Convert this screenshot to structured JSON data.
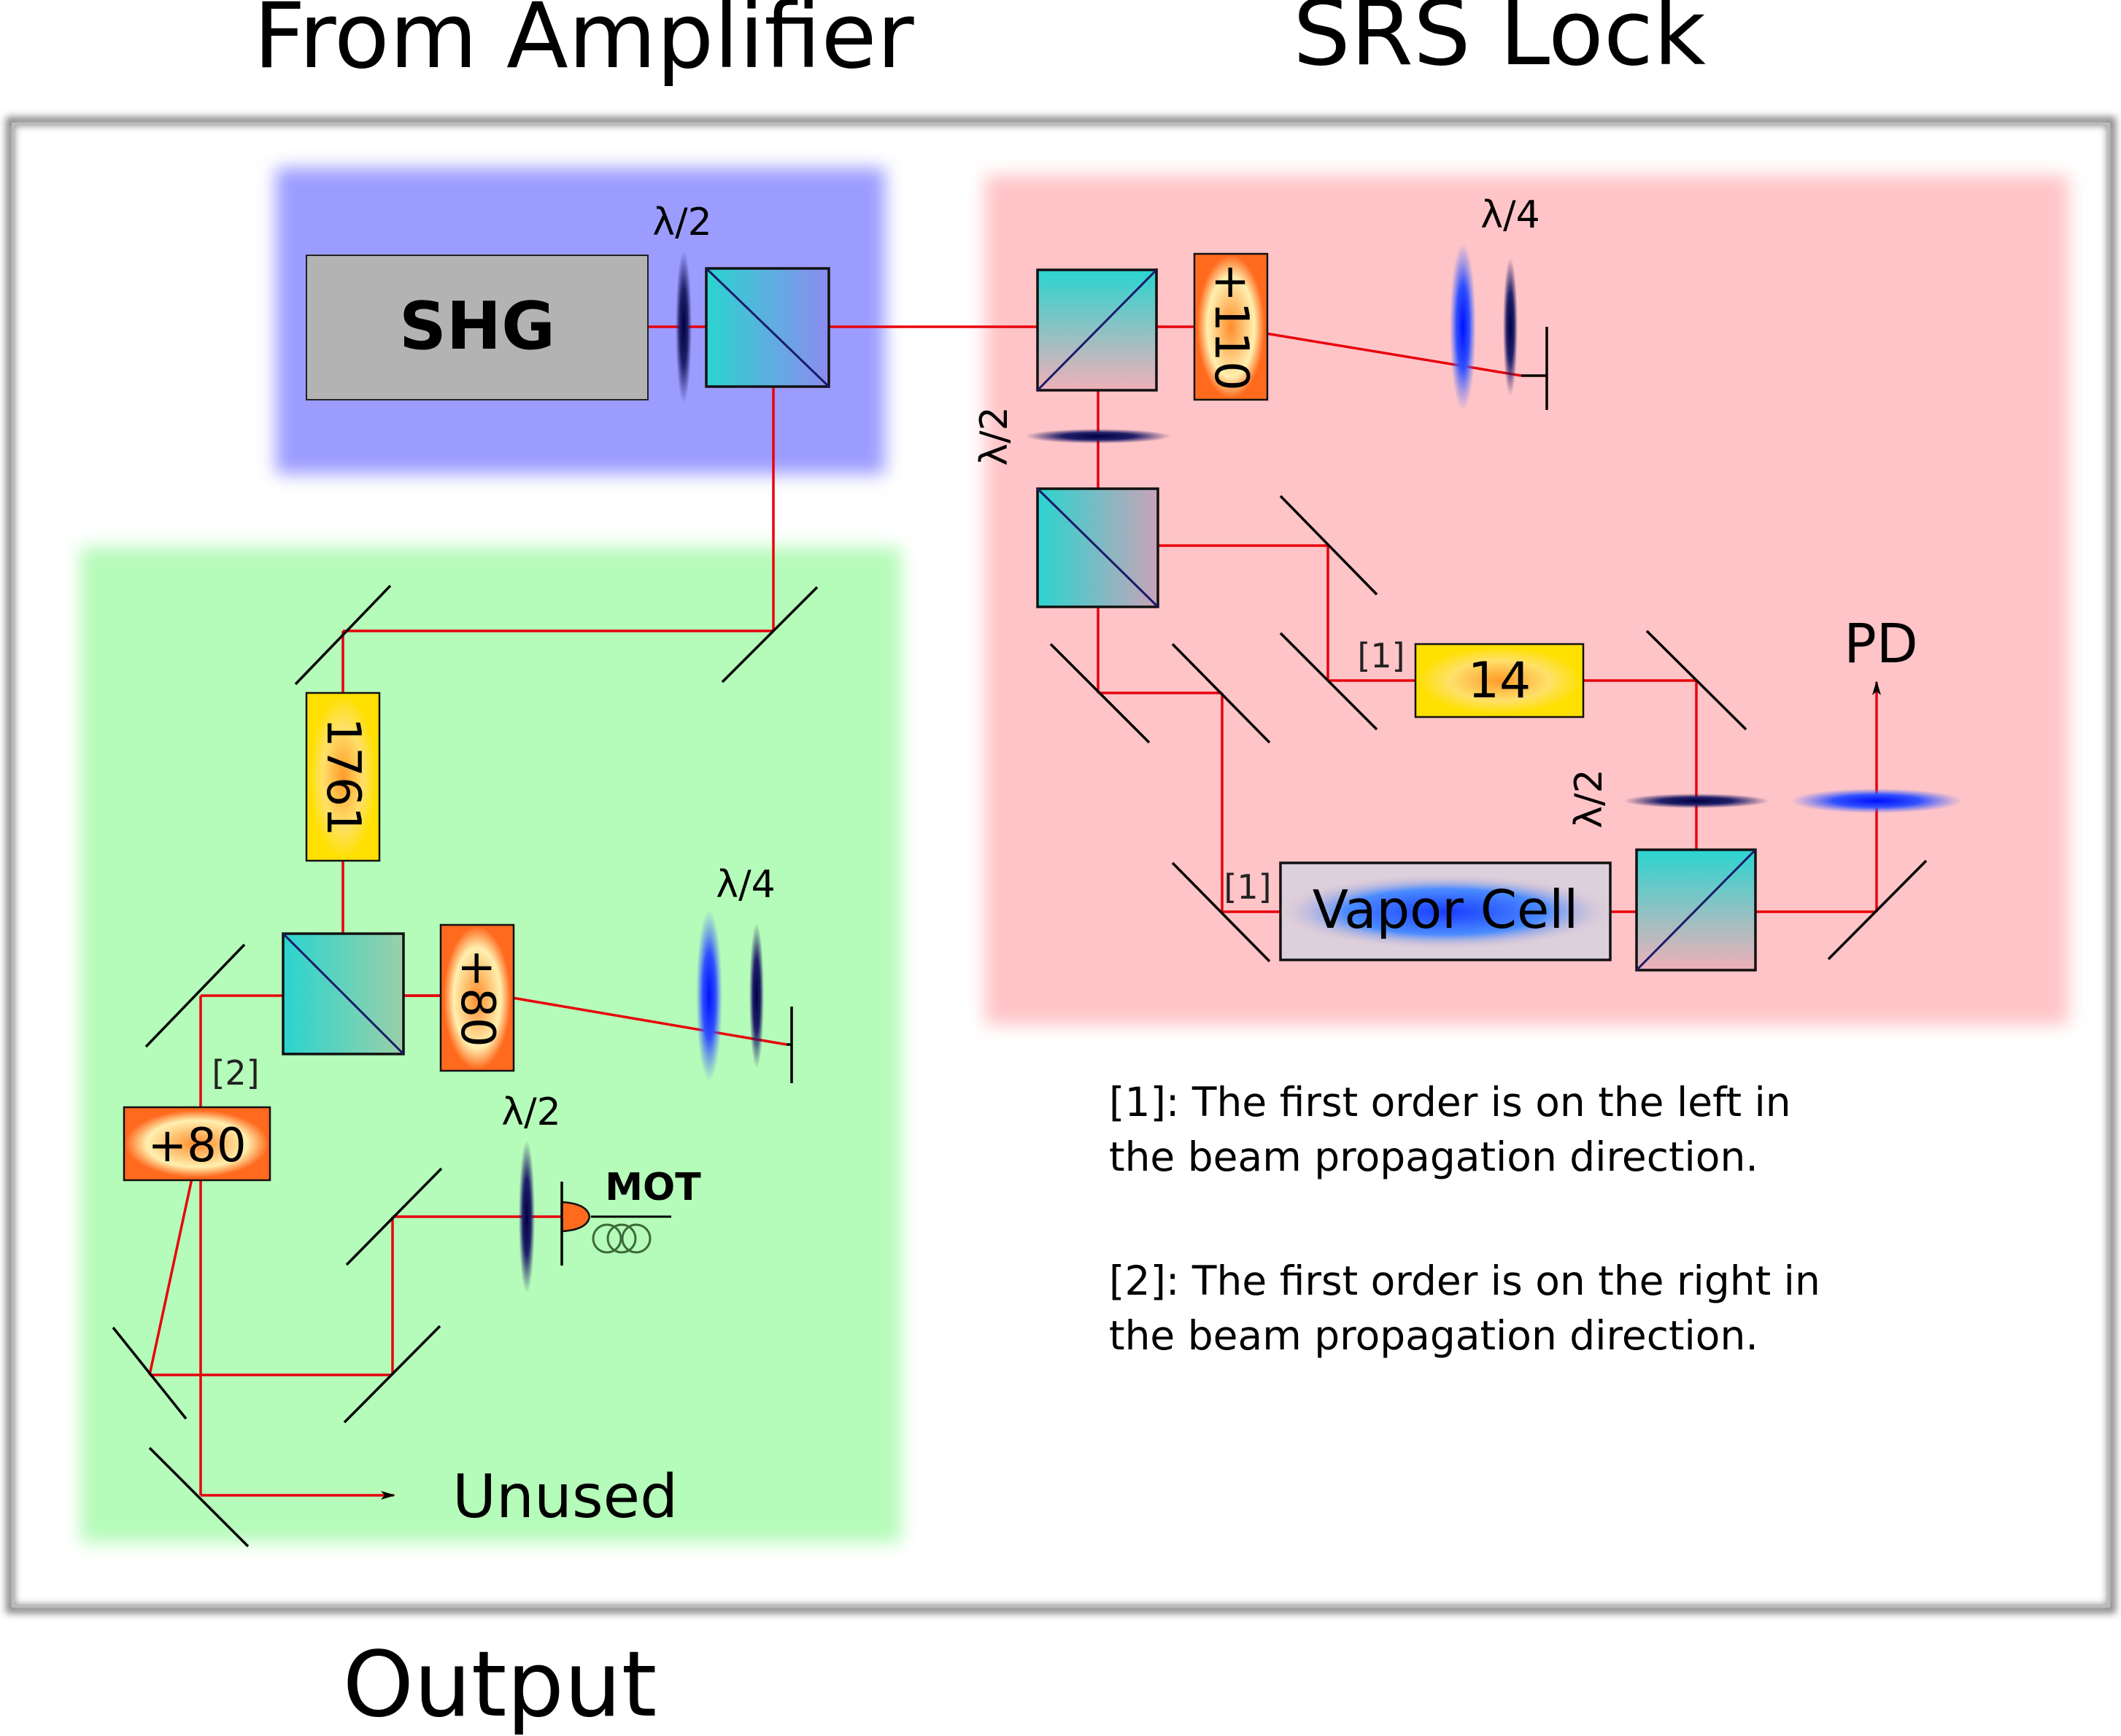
{
  "headings": {
    "from_amplifier": "From Amplifier",
    "srs_lock": "SRS Lock",
    "output": "Output"
  },
  "components": {
    "shg": "SHG",
    "vapor_cell": "Vapor Cell",
    "aom_110": "+110",
    "aom_14": "14",
    "aom_1761": "1761",
    "aom_80_upper": "+80",
    "aom_80_lower": "+80",
    "mot": "MOT"
  },
  "optics": {
    "half_wave": "λ/2",
    "quarter_wave": "λ/4"
  },
  "labels": {
    "pd": "PD",
    "unused": "Unused",
    "order_1": "[1]",
    "order_2": "[2]"
  },
  "notes": {
    "note1_line1": "[1]: The first order is on the left in",
    "note1_line2": "the beam propagation direction.",
    "note2_line1": "[2]: The first order is on the right in",
    "note2_line2": "the beam propagation direction."
  },
  "colors": {
    "beam": "#e8000b",
    "shg_region": "#9c9cff",
    "srs_region": "#ffc4c7",
    "output_region": "#b5fbb9",
    "cube": "#2ad4cf",
    "aom_box": "#ff6a1e",
    "aom_core": "#ffe000",
    "waveplate_dark": "#1a1a4e",
    "waveplate_blue": "#0020ff"
  }
}
